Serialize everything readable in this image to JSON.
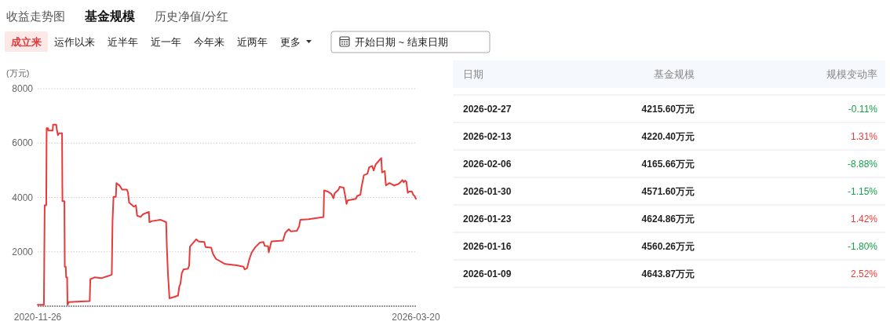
{
  "chart_data": [
    {
      "type": "other",
      "annotations": [
        "收益走势图",
        "基金规模",
        "历史净值/分红",
        "成立来",
        "运作以来",
        "近半年",
        "近一年",
        "今年来",
        "近两年",
        "更多",
        "开始日期 ~ 结束日期"
      ]
    },
    {
      "type": "line",
      "ylabel": "(万元)",
      "color": "#e83b3b",
      "x": [
        "2020-11-26",
        "2020-12-28",
        "2021-01-01",
        "2021-01-09",
        "2021-01-11",
        "2021-01-18",
        "2021-01-20",
        "2021-02-11",
        "2021-02-13",
        "2021-03-01",
        "2021-03-05",
        "2021-03-10",
        "2021-03-16",
        "2021-03-31",
        "2021-04-02",
        "2021-04-12",
        "2021-04-14",
        "2021-04-19",
        "2021-04-21",
        "2021-04-26",
        "2021-04-28",
        "2021-05-05",
        "2021-08-20",
        "2021-08-23",
        "2021-09-13",
        "2021-10-18",
        "2021-11-23",
        "2021-12-11",
        "2021-12-15",
        "2021-12-20",
        "2022-01-01",
        "2022-01-04",
        "2022-01-21",
        "2022-02-02",
        "2022-02-26",
        "2022-03-04",
        "2022-03-10",
        "2022-04-03",
        "2022-04-14",
        "2022-04-20",
        "2022-05-08",
        "2022-05-20",
        "2022-06-19",
        "2022-06-22",
        "2022-07-06",
        "2022-08-17",
        "2022-09-16",
        "2022-09-19",
        "2022-09-25",
        "2022-10-03",
        "2022-10-27",
        "2022-11-16",
        "2022-11-22",
        "2022-11-28",
        "2022-12-05",
        "2022-12-14",
        "2023-01-06",
        "2023-01-12",
        "2023-01-16",
        "2023-02-11",
        "2023-02-17",
        "2023-03-01",
        "2023-03-31",
        "2023-04-06",
        "2023-05-05",
        "2023-05-14",
        "2023-05-29",
        "2023-06-22",
        "2023-07-15",
        "2023-09-13",
        "2023-10-18",
        "2023-10-24",
        "2023-11-05",
        "2023-11-17",
        "2023-11-29",
        "2023-12-17",
        "2024-01-10",
        "2024-01-28",
        "2024-02-03",
        "2024-02-21",
        "2024-02-24",
        "2024-03-09",
        "2024-05-07",
        "2024-05-19",
        "2024-06-06",
        "2024-06-17",
        "2024-07-17",
        "2024-07-29",
        "2024-08-04",
        "2024-09-15",
        "2024-12-01",
        "2024-12-04",
        "2024-12-25",
        "2025-01-11",
        "2025-01-21",
        "2025-01-27",
        "2025-02-16",
        "2025-02-22",
        "2025-03-14",
        "2025-03-21",
        "2025-03-29",
        "2025-04-04",
        "2025-05-16",
        "2025-05-22",
        "2025-06-08",
        "2025-06-14",
        "2025-06-26",
        "2025-07-14",
        "2025-07-23",
        "2025-08-07",
        "2025-08-15",
        "2025-08-25",
        "2025-09-11",
        "2025-09-23",
        "2025-09-27",
        "2025-10-11",
        "2025-10-17",
        "2025-11-04",
        "2025-11-28",
        "2025-12-21",
        "2026-01-02",
        "2026-01-09",
        "2026-01-16",
        "2026-01-23",
        "2026-01-30",
        "2026-02-06",
        "2026-02-13",
        "2026-02-27",
        "2026-03-06",
        "2026-03-13",
        "2026-03-20"
      ],
      "values": [
        50,
        50,
        3710,
        3710,
        6550,
        6550,
        6460,
        6460,
        6680,
        6680,
        6460,
        6290,
        6360,
        6360,
        3860,
        3860,
        1450,
        1450,
        1060,
        1060,
        50,
        150,
        190,
        990,
        1060,
        1030,
        1110,
        1160,
        3150,
        4020,
        4020,
        4530,
        4430,
        4290,
        4290,
        4190,
        3810,
        3660,
        3710,
        3330,
        3280,
        3380,
        3470,
        3090,
        3130,
        3180,
        3090,
        2270,
        1210,
        290,
        340,
        390,
        720,
        820,
        1210,
        1350,
        1380,
        1500,
        2190,
        2410,
        2460,
        2380,
        2360,
        2170,
        2150,
        1930,
        1740,
        1640,
        1550,
        1500,
        1450,
        1350,
        1400,
        1740,
        1980,
        2170,
        2340,
        2360,
        2220,
        2200,
        1980,
        2380,
        2410,
        2700,
        2830,
        2750,
        2770,
        2940,
        3180,
        3200,
        3280,
        4260,
        4210,
        4120,
        3970,
        4150,
        4290,
        4390,
        4360,
        4100,
        3760,
        3890,
        3950,
        4050,
        4100,
        4390,
        4820,
        4870,
        5110,
        5160,
        4990,
        5210,
        5350,
        5450,
        4920,
        4970,
        4440,
        4530,
        4440,
        4500,
        4580,
        4640,
        4560,
        4620,
        4570,
        4170,
        4220,
        4220,
        4100,
        4050,
        3950
      ],
      "xlim": [
        "2020-11-26",
        "2026-03-20"
      ],
      "xticks": [
        "2020-11-26",
        "2026-03-20"
      ],
      "ylim": [
        0,
        8000
      ],
      "yticks": [
        2000,
        4000,
        6000,
        8000
      ],
      "grid": "y"
    },
    {
      "type": "other",
      "annotations": [
        "日期",
        "基金规模",
        "规模变动率",
        "2026-02-27",
        "4215.60万元",
        "-0.11%",
        "2026-02-13",
        "4220.40万元",
        "1.31%",
        "2026-02-06",
        "4165.66万元",
        "-8.88%",
        "2026-01-30",
        "4571.60万元",
        "-1.15%",
        "2026-01-23",
        "4624.86万元",
        "1.42%",
        "2026-01-16",
        "4560.26万元",
        "-1.80%",
        "2026-01-09",
        "4643.87万元",
        "2.52%"
      ],
      "colors": [
        "#888888",
        "#888888",
        "#888888",
        "#1f1f1f",
        "#1f1f1f",
        "#16a04a",
        "#1f1f1f",
        "#1f1f1f",
        "#e83b3b",
        "#1f1f1f",
        "#1f1f1f",
        "#16a04a",
        "#1f1f1f",
        "#1f1f1f",
        "#16a04a",
        "#1f1f1f",
        "#1f1f1f",
        "#e83b3b",
        "#1f1f1f",
        "#1f1f1f",
        "#16a04a",
        "#1f1f1f",
        "#1f1f1f",
        "#e83b3b"
      ]
    }
  ]
}
